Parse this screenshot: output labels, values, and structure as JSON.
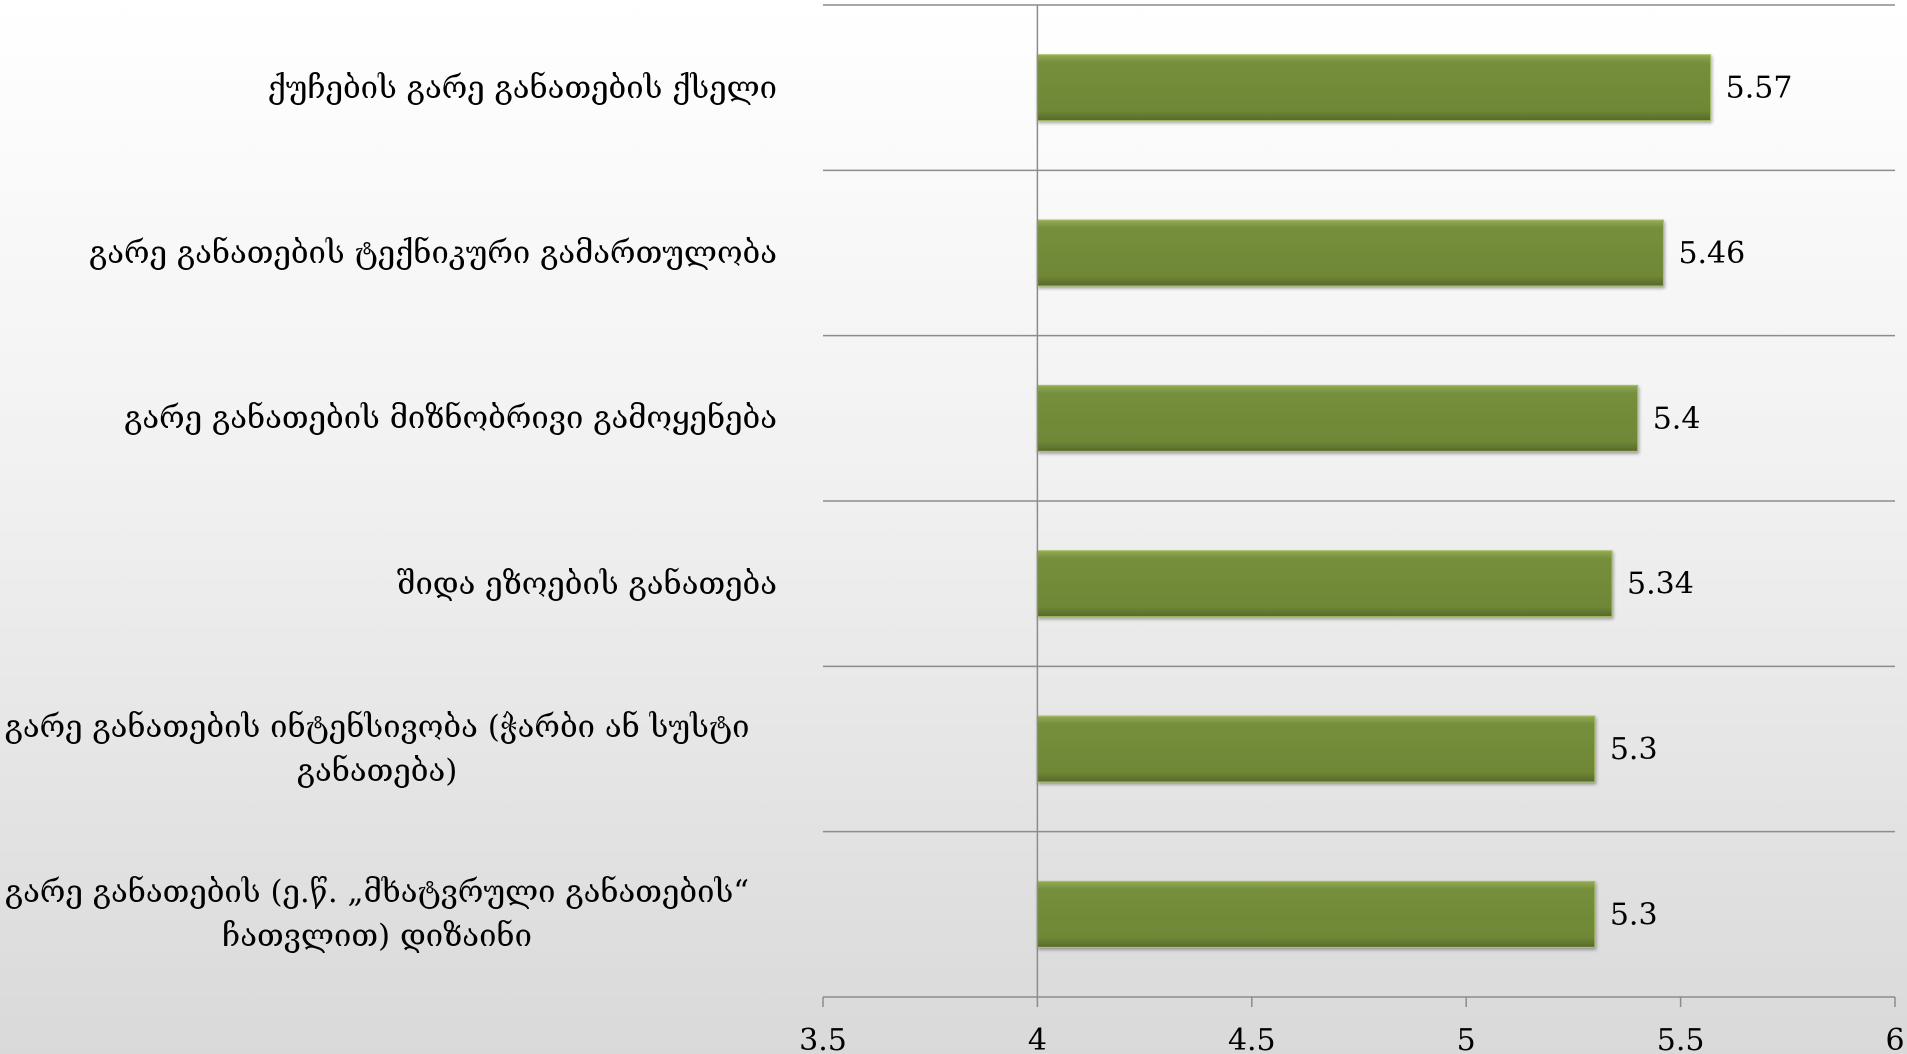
{
  "chart_data": {
    "type": "bar",
    "orientation": "horizontal",
    "title": "",
    "xlabel": "",
    "ylabel": "",
    "xlim": [
      3.5,
      6
    ],
    "x_ticks": [
      "3.5",
      "4",
      "4.5",
      "5",
      "5.5",
      "6"
    ],
    "bar_color": "#768f3c",
    "grid": "horizontal separators between categories",
    "legend": "none",
    "categories": [
      "ქუჩების გარე განათების ქსელი",
      "გარე განათების ტექნიკური გამართულობა",
      "გარე განათების მიზნობრივი გამოყენება",
      "შიდა ეზოების განათება",
      "გარე განათების ინტენსივობა (ჭარბი ან სუსტი განათება)",
      "გარე განათების (ე.წ. „მხატვრული განათების“ ჩათვლით) დიზაინი"
    ],
    "values": [
      5.57,
      5.46,
      5.4,
      5.34,
      5.3,
      5.3
    ],
    "value_labels": [
      "5.57",
      "5.46",
      "5.4",
      "5.34",
      "5.3",
      "5.3"
    ]
  }
}
